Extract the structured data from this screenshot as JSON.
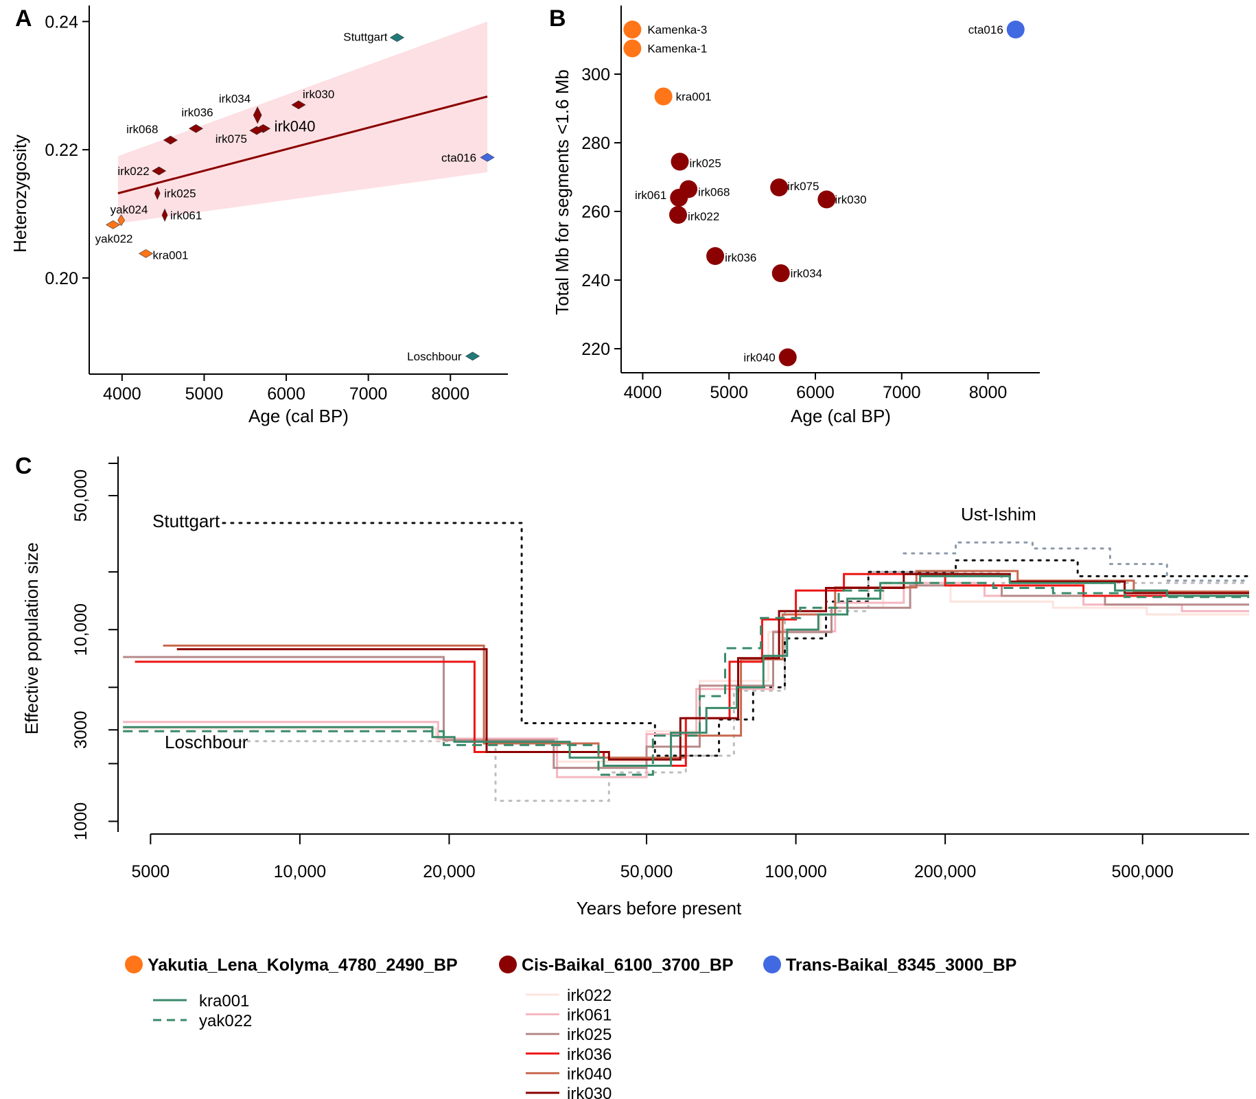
{
  "chart_data": [
    {
      "panel": "A",
      "type": "scatter",
      "xlabel": "Age (cal BP)",
      "ylabel": "Heterozygosity",
      "xlim": [
        3600,
        8700
      ],
      "ylim": [
        0.185,
        0.2425
      ],
      "xticks": [
        4000,
        5000,
        6000,
        7000,
        8000
      ],
      "yticks": [
        0.2,
        0.22,
        0.24
      ],
      "ytick_labels": [
        "0.20",
        "0.22",
        "0.24"
      ],
      "regression": {
        "x": [
          3950,
          8450
        ],
        "y": [
          0.2132,
          0.2283
        ],
        "ci_lower": [
          0.2085,
          0.2165
        ],
        "ci_upper": [
          0.219,
          0.24
        ],
        "color": "#8B0000",
        "ci_color": "#fde0e4"
      },
      "points": [
        {
          "label": "Stuttgart",
          "x": 7350,
          "y": 0.2375,
          "color": "#1f7a7a"
        },
        {
          "label": "irk030",
          "x": 6150,
          "y": 0.227,
          "color": "#8B0000"
        },
        {
          "label": "irk034",
          "x": 5650,
          "y": 0.2254,
          "color": "#8B0000"
        },
        {
          "label": "irk036",
          "x": 4900,
          "y": 0.2233,
          "color": "#8B0000"
        },
        {
          "label": "irk040",
          "x": 5720,
          "y": 0.2233,
          "color": "#8B0000"
        },
        {
          "label": "irk075",
          "x": 5640,
          "y": 0.223,
          "color": "#8B0000"
        },
        {
          "label": "irk068",
          "x": 4590,
          "y": 0.2215,
          "color": "#8B0000"
        },
        {
          "label": "cta016",
          "x": 8450,
          "y": 0.2188,
          "color": "#4169e1"
        },
        {
          "label": "irk022",
          "x": 4450,
          "y": 0.2167,
          "color": "#8B0000"
        },
        {
          "label": "irk025",
          "x": 4430,
          "y": 0.2132,
          "color": "#8B0000"
        },
        {
          "label": "irk061",
          "x": 4520,
          "y": 0.2098,
          "color": "#8B0000"
        },
        {
          "label": "yak024",
          "x": 3990,
          "y": 0.209,
          "color": "#ff7518"
        },
        {
          "label": "yak022",
          "x": 3890,
          "y": 0.2083,
          "color": "#ff7518"
        },
        {
          "label": "kra001",
          "x": 4290,
          "y": 0.2038,
          "color": "#ff7518"
        },
        {
          "label": "Loschbour",
          "x": 8270,
          "y": 0.1878,
          "color": "#1f7a7a"
        }
      ]
    },
    {
      "panel": "B",
      "type": "scatter",
      "xlabel": "Age (cal BP)",
      "ylabel": "Total Mb for segments <1.6 Mb",
      "xlim": [
        3750,
        8600
      ],
      "ylim": [
        213,
        320
      ],
      "xticks": [
        4000,
        5000,
        6000,
        7000,
        8000
      ],
      "yticks": [
        220,
        240,
        260,
        280,
        300
      ],
      "points": [
        {
          "label": "Kamenka-3",
          "x": 3880,
          "y": 313,
          "color": "#ff7518"
        },
        {
          "label": "Kamenka-1",
          "x": 3880,
          "y": 307.5,
          "color": "#ff7518"
        },
        {
          "label": "cta016",
          "x": 8320,
          "y": 313,
          "color": "#4169e1"
        },
        {
          "label": "kra001",
          "x": 4240,
          "y": 293.5,
          "color": "#ff7518"
        },
        {
          "label": "irk025",
          "x": 4430,
          "y": 274.5,
          "color": "#8B0000"
        },
        {
          "label": "irk075",
          "x": 5580,
          "y": 267,
          "color": "#8B0000"
        },
        {
          "label": "irk068",
          "x": 4530,
          "y": 266.5,
          "color": "#8B0000"
        },
        {
          "label": "irk061",
          "x": 4420,
          "y": 264,
          "color": "#8B0000"
        },
        {
          "label": "irk030",
          "x": 6130,
          "y": 263.5,
          "color": "#8B0000"
        },
        {
          "label": "irk022",
          "x": 4410,
          "y": 259,
          "color": "#8B0000"
        },
        {
          "label": "irk036",
          "x": 4840,
          "y": 247,
          "color": "#8B0000"
        },
        {
          "label": "irk034",
          "x": 5600,
          "y": 242,
          "color": "#8B0000"
        },
        {
          "label": "irk040",
          "x": 5680,
          "y": 217.5,
          "color": "#8B0000"
        }
      ]
    },
    {
      "panel": "C",
      "type": "line",
      "xlabel": "Years before present",
      "ylabel": "Effective population size",
      "xscale": "log",
      "yscale": "log",
      "xlim": [
        4300,
        820000
      ],
      "ylim": [
        880,
        80000
      ],
      "xticks": [
        5000,
        10000,
        20000,
        50000,
        100000,
        200000,
        500000
      ],
      "xtick_labels": [
        "5000",
        "10,000",
        "20,000",
        "50,000",
        "100,000",
        "200,000",
        "500,000"
      ],
      "yticks": [
        1000,
        3000,
        10000,
        50000
      ],
      "ytick_labels": [
        "1000",
        "3000",
        "10,000",
        "50,000"
      ],
      "annotations": [
        "Stuttgart",
        "Loschbour",
        "Ust-Ishim"
      ],
      "series": [
        {
          "name": "kra001",
          "color": "#3a8a6a",
          "dash": "solid",
          "x": [
            4400,
            18500,
            18500,
            20500,
            20500,
            35000,
            35000,
            41000,
            41000,
            56000,
            56000,
            66000,
            66000,
            76000,
            76000,
            86000,
            86000,
            96000,
            96000,
            111000,
            111000,
            127000,
            127000,
            148000,
            148000,
            178000,
            178000,
            270000,
            270000,
            440000,
            440000,
            560000,
            560000,
            820000
          ],
          "y": [
            3100,
            3100,
            2750,
            2750,
            2600,
            2600,
            2150,
            2150,
            1950,
            1950,
            2900,
            2900,
            3900,
            3900,
            5000,
            5000,
            7300,
            7300,
            10000,
            10000,
            12000,
            12000,
            14500,
            14500,
            17500,
            17500,
            19000,
            19000,
            17500,
            17500,
            16000,
            16000,
            15000,
            15000
          ]
        },
        {
          "name": "yak022",
          "color": "#3a8a6a",
          "dash": "dashed",
          "x": [
            4400,
            19500,
            19500,
            40000,
            40000,
            51500,
            51500,
            64000,
            64000,
            72000,
            72000,
            85000,
            85000,
            102000,
            102000,
            122000,
            122000,
            150000,
            150000,
            250000,
            250000,
            330000,
            330000,
            460000,
            460000,
            820000
          ],
          "y": [
            2950,
            2950,
            2500,
            2500,
            1750,
            1750,
            2800,
            2800,
            4500,
            4500,
            8000,
            8000,
            11500,
            11500,
            13000,
            13000,
            16000,
            16000,
            17500,
            17500,
            16500,
            16500,
            15500,
            15500,
            14800,
            14800
          ]
        },
        {
          "name": "irk022",
          "color": "#fde4de",
          "dash": "solid",
          "x": [
            4400,
            18800,
            18800,
            33000,
            33000,
            50000,
            50000,
            64000,
            64000,
            88000,
            88000,
            112000,
            112000,
            150000,
            150000,
            205000,
            205000,
            330000,
            330000,
            510000,
            510000,
            820000
          ],
          "y": [
            3050,
            3050,
            2650,
            2650,
            2050,
            2050,
            2950,
            2950,
            5400,
            5400,
            9700,
            9700,
            13000,
            13000,
            17000,
            17000,
            14000,
            14000,
            13000,
            13000,
            12000,
            12000
          ]
        },
        {
          "name": "irk061",
          "color": "#f4b6c0",
          "dash": "solid",
          "x": [
            4400,
            19000,
            19000,
            33000,
            33000,
            50000,
            50000,
            63000,
            63000,
            90000,
            90000,
            120000,
            120000,
            165000,
            165000,
            240000,
            240000,
            380000,
            380000,
            600000,
            600000,
            820000
          ],
          "y": [
            3300,
            3300,
            2700,
            2700,
            1700,
            1700,
            2850,
            2850,
            4900,
            4900,
            9800,
            9800,
            13800,
            13800,
            17500,
            17500,
            15000,
            15000,
            13500,
            13500,
            12500,
            12500
          ]
        },
        {
          "name": "irk025",
          "color": "#b88a8a",
          "dash": "solid",
          "x": [
            4400,
            19500,
            19500,
            32500,
            32500,
            50000,
            50000,
            64000,
            64000,
            90000,
            90000,
            118000,
            118000,
            170000,
            170000,
            260000,
            260000,
            420000,
            420000,
            820000
          ],
          "y": [
            7200,
            7200,
            2650,
            2650,
            1900,
            1900,
            2450,
            2450,
            5100,
            5100,
            9700,
            9700,
            13000,
            13000,
            17000,
            17000,
            15000,
            15000,
            13500,
            13500
          ]
        },
        {
          "name": "irk036",
          "color": "#ee1515",
          "dash": "solid",
          "x": [
            4650,
            22500,
            22500,
            41000,
            41000,
            60000,
            60000,
            73500,
            73500,
            85500,
            85500,
            100000,
            100000,
            125000,
            125000,
            200000,
            200000,
            380000,
            380000,
            820000
          ],
          "y": [
            6800,
            6800,
            2300,
            2300,
            1950,
            1950,
            3450,
            3450,
            6800,
            6800,
            11300,
            11300,
            16000,
            16000,
            19500,
            19500,
            17000,
            17000,
            15000,
            15000
          ]
        },
        {
          "name": "irk040",
          "color": "#c86a50",
          "dash": "solid",
          "x": [
            5300,
            23500,
            23500,
            40000,
            40000,
            60000,
            60000,
            77500,
            77500,
            94000,
            94000,
            120000,
            120000,
            175000,
            175000,
            280000,
            280000,
            480000,
            480000,
            820000
          ],
          "y": [
            8250,
            8250,
            2550,
            2550,
            2150,
            2150,
            2800,
            2800,
            7000,
            7000,
            12000,
            12000,
            16600,
            16600,
            20200,
            20200,
            18000,
            18000,
            15800,
            15800
          ]
        },
        {
          "name": "irk030",
          "color": "#8B0000",
          "dash": "solid",
          "x": [
            5650,
            23800,
            23800,
            42000,
            42000,
            58500,
            58500,
            76500,
            76500,
            92500,
            92500,
            115000,
            115000,
            165000,
            165000,
            270000,
            270000,
            460000,
            460000,
            820000
          ],
          "y": [
            7900,
            7900,
            2300,
            2300,
            2100,
            2100,
            3450,
            3450,
            7100,
            7100,
            12500,
            12500,
            16500,
            16500,
            19500,
            19500,
            17800,
            17800,
            15500,
            15500
          ]
        },
        {
          "name": "Stuttgart",
          "color": "#111111",
          "dash": "dotted",
          "x": [
            7000,
            28000,
            28000,
            52000,
            52000,
            70000,
            70000,
            82000,
            82000,
            95000,
            95000,
            115000,
            115000,
            140000,
            140000,
            210000,
            210000,
            370000,
            370000,
            820000
          ],
          "y": [
            36000,
            36000,
            3250,
            3250,
            2200,
            2200,
            3400,
            3400,
            5000,
            5000,
            9000,
            9000,
            14000,
            14000,
            20000,
            20000,
            23000,
            23000,
            19000,
            19000
          ]
        },
        {
          "name": "Loschbour",
          "color": "#bdbdbd",
          "dash": "dotted",
          "x": [
            7000,
            24800,
            24800,
            42000,
            42000,
            60000,
            60000,
            75000,
            75000,
            95000,
            95000,
            140000,
            140000,
            260000,
            260000,
            820000
          ],
          "y": [
            2620,
            2620,
            1280,
            1280,
            1800,
            1800,
            2200,
            2200,
            4800,
            4800,
            12500,
            12500,
            20000,
            20000,
            17500,
            17500
          ]
        },
        {
          "name": "Ust-Ishim",
          "color": "#8a9aaa",
          "dash": "dotted",
          "x": [
            165000,
            210000,
            210000,
            300000,
            300000,
            430000,
            430000,
            560000,
            560000,
            820000
          ],
          "y": [
            25000,
            25000,
            28500,
            28500,
            26500,
            26500,
            22000,
            22000,
            18000,
            18000
          ]
        }
      ]
    }
  ],
  "legend": {
    "groups": [
      {
        "label": "Yakutia_Lena_Kolyma_4780_2490_BP",
        "color": "#ff7518"
      },
      {
        "label": "Cis-Baikal_6100_3700_BP",
        "color": "#8B0000"
      },
      {
        "label": "Trans-Baikal_8345_3000_BP",
        "color": "#4169e1"
      }
    ],
    "lines_left": [
      {
        "label": "kra001",
        "color": "#3a8a6a",
        "dash": "solid"
      },
      {
        "label": "yak022",
        "color": "#3a8a6a",
        "dash": "dashed"
      }
    ],
    "lines_right": [
      {
        "label": "irk022",
        "color": "#fde4de"
      },
      {
        "label": "irk061",
        "color": "#f4b6c0"
      },
      {
        "label": "irk025",
        "color": "#b88a8a"
      },
      {
        "label": "irk036",
        "color": "#ee1515"
      },
      {
        "label": "irk040",
        "color": "#c86a50"
      },
      {
        "label": "irk030",
        "color": "#8B0000"
      }
    ]
  },
  "panel_letters": [
    "A",
    "B",
    "C"
  ]
}
